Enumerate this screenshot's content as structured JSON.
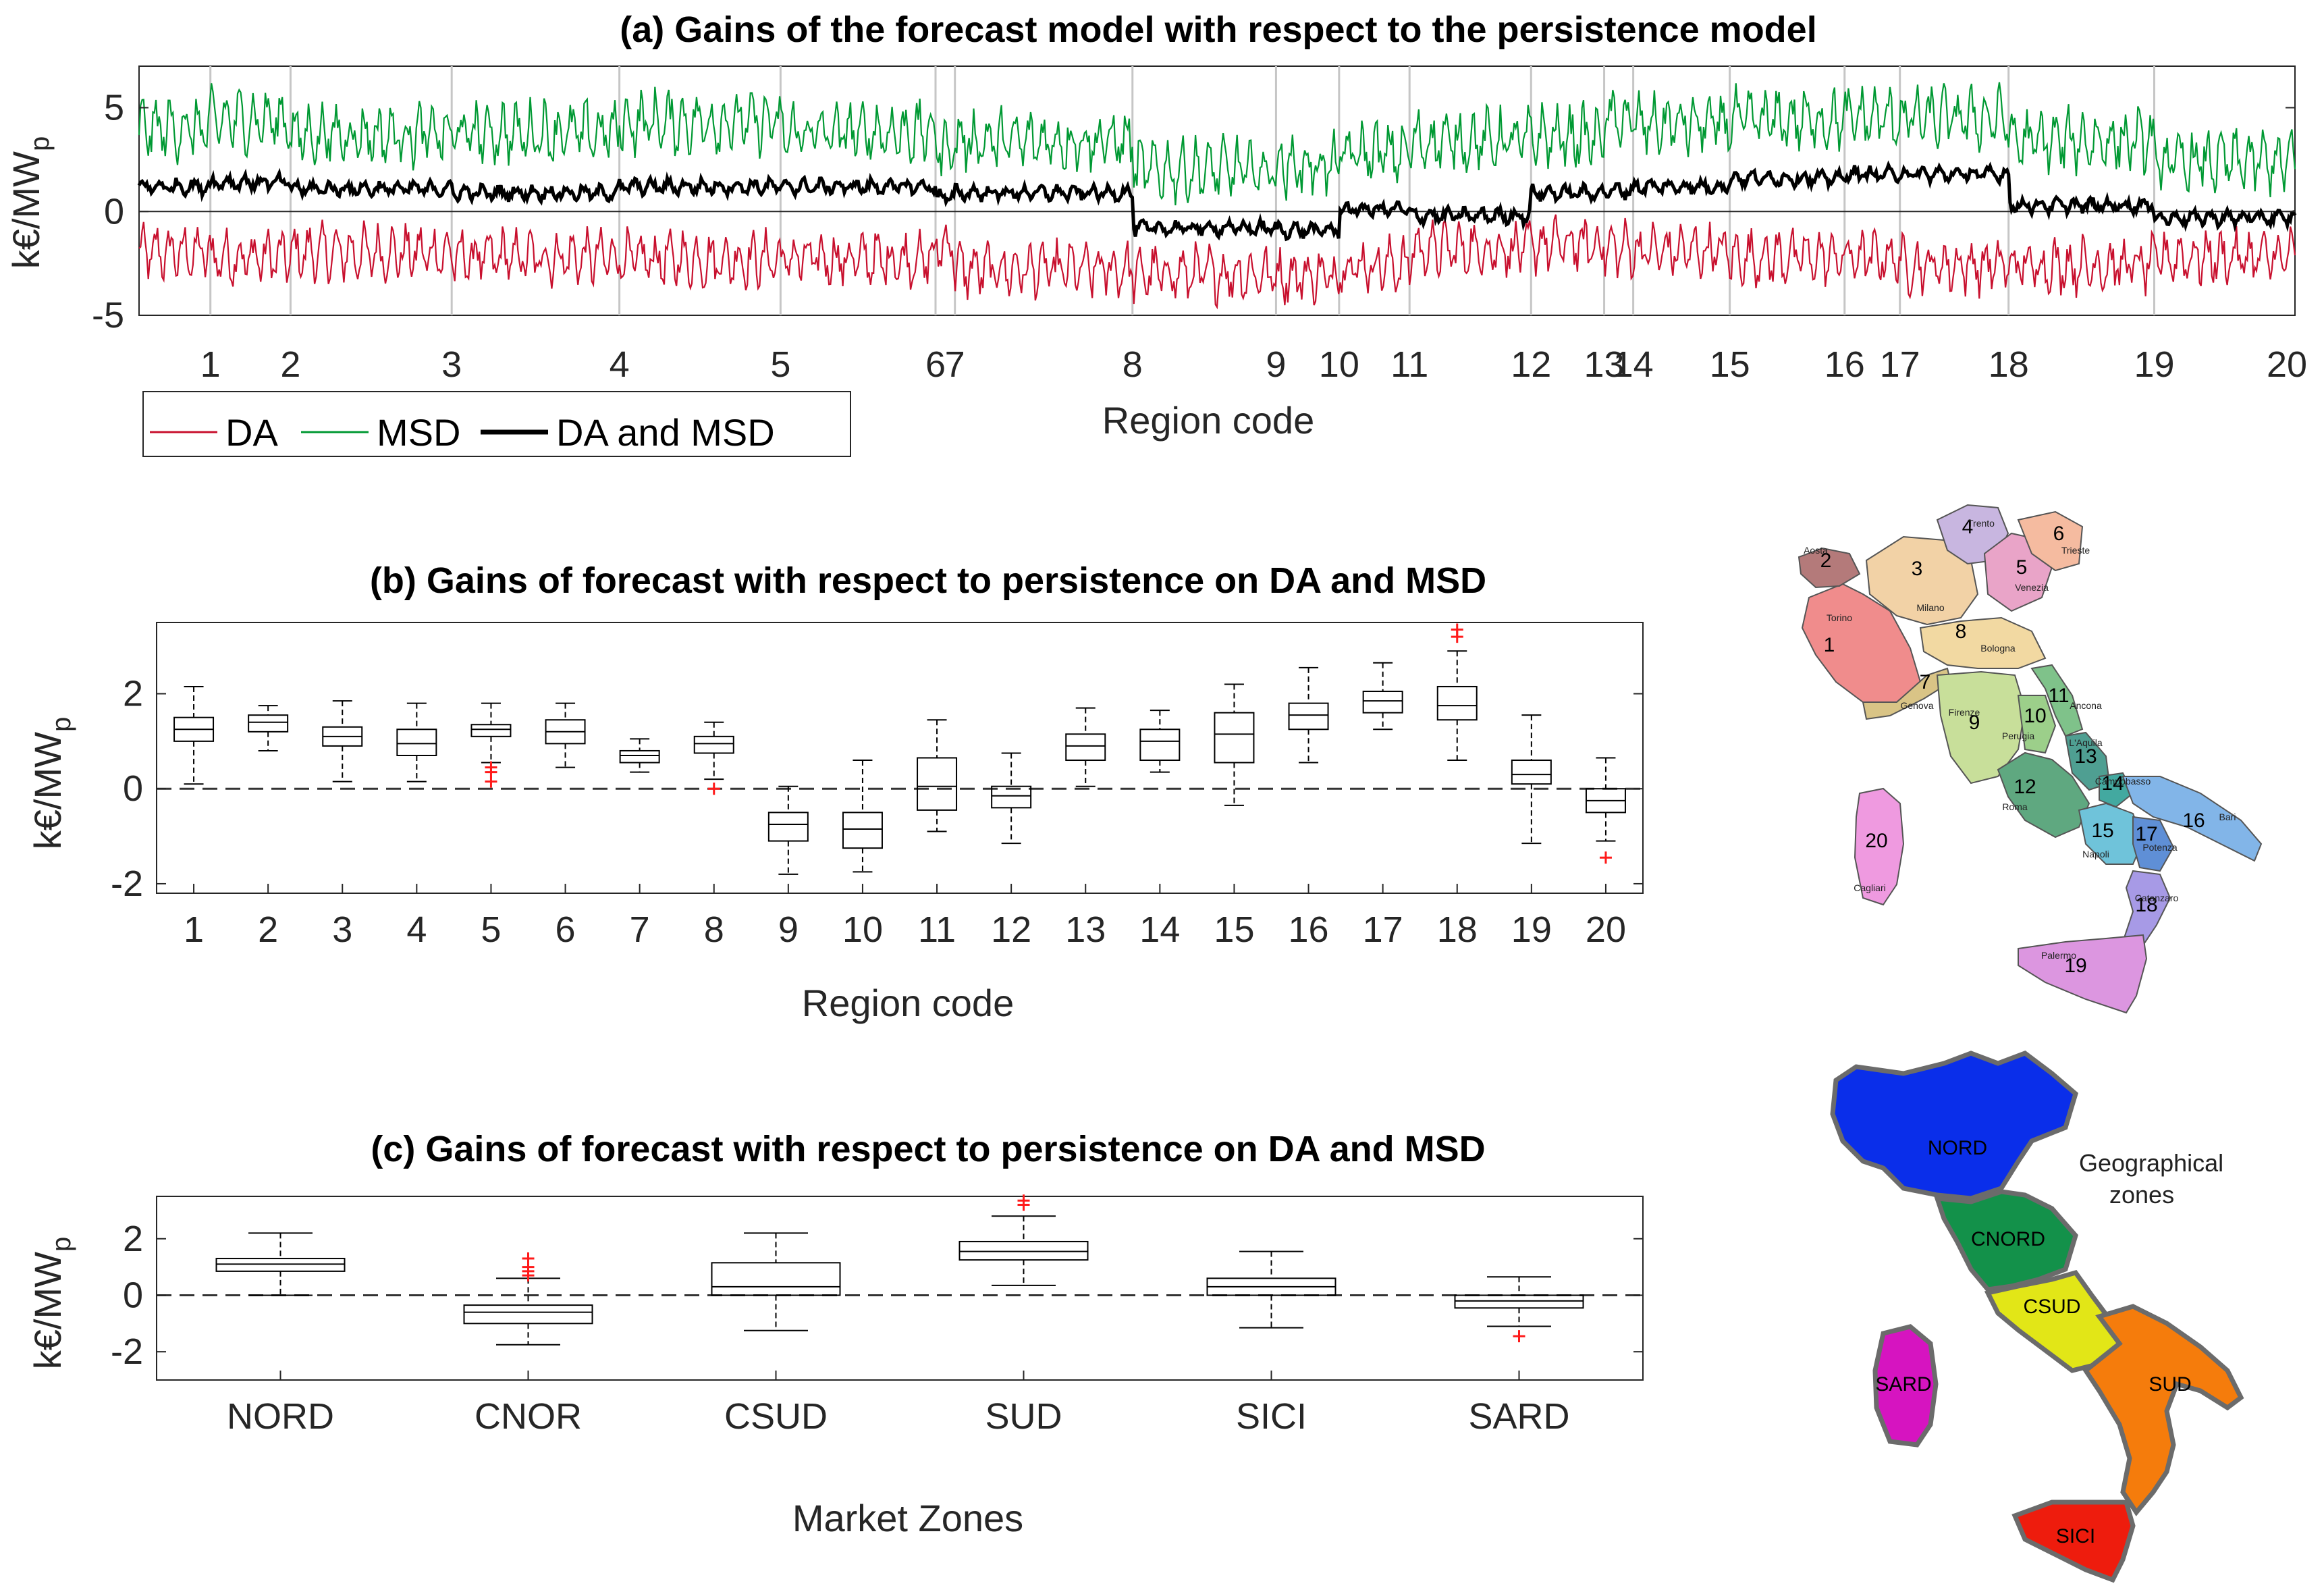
{
  "figure": {
    "geo_note_line1": "Geographical",
    "geo_note_line2": "zones"
  },
  "chart_data": [
    {
      "id": "a",
      "type": "line",
      "title": "(a) Gains of the forecast model with respect to the persistence model",
      "xlabel": "Region code",
      "ylabel": "k€/MW",
      "ylabel_sub": "p",
      "ylim": [
        -5,
        7
      ],
      "yticks": [
        "5",
        "0",
        "-5"
      ],
      "ytick_values": [
        5,
        0,
        -5
      ],
      "region_labels": [
        "1",
        "2",
        "3",
        "4",
        "5",
        "6",
        "7",
        "8",
        "9",
        "10",
        "11",
        "12",
        "13",
        "14",
        "15",
        "16",
        "17",
        "18",
        "19",
        "20"
      ],
      "region_boundaries": [
        0.0405,
        0.0455,
        0.0915,
        0.0952,
        0.0915,
        0.088,
        0.011,
        0.1008,
        0.0815,
        0.0358,
        0.04,
        0.069,
        0.0415,
        0.0165,
        0.0548,
        0.0652,
        0.0314,
        0.0617,
        0.0827,
        0.0799
      ],
      "region_mean_DA_MSD": [
        1.2,
        1.4,
        1.1,
        0.9,
        1.2,
        1.2,
        0.7,
        0.9,
        -0.8,
        -0.9,
        0.1,
        -0.2,
        0.9,
        1.0,
        1.2,
        1.6,
        1.8,
        1.8,
        0.3,
        -0.3
      ],
      "region_mean_DA": [
        -2.0,
        -2.2,
        -2.0,
        -2.2,
        -2.3,
        -2.3,
        -1.6,
        -2.8,
        -3.0,
        -3.1,
        -2.6,
        -1.8,
        -1.6,
        -1.8,
        -1.9,
        -2.2,
        -2.2,
        -2.6,
        -2.6,
        -2.2
      ],
      "region_mean_MSD": [
        4.0,
        4.4,
        3.7,
        3.8,
        4.3,
        3.8,
        3.1,
        3.4,
        2.0,
        2.2,
        2.8,
        3.4,
        3.6,
        4.4,
        4.2,
        4.4,
        4.5,
        4.5,
        3.4,
        2.4
      ],
      "series": [
        {
          "name": "DA",
          "color": "#c8102e"
        },
        {
          "name": "MSD",
          "color": "#009933"
        },
        {
          "name": "DA and MSD",
          "color": "#000000"
        }
      ]
    },
    {
      "id": "b",
      "type": "box",
      "title": "(b) Gains of forecast with respect to persistence on DA and MSD",
      "xlabel": "Region code",
      "ylabel": "k€/MW",
      "ylabel_sub": "p",
      "ylim": [
        -2.2,
        3.5
      ],
      "yticks": [
        "2",
        "0",
        "-2"
      ],
      "ytick_values": [
        2,
        0,
        -2
      ],
      "categories": [
        "1",
        "2",
        "3",
        "4",
        "5",
        "6",
        "7",
        "8",
        "9",
        "10",
        "11",
        "12",
        "13",
        "14",
        "15",
        "16",
        "17",
        "18",
        "19",
        "20"
      ],
      "boxes": [
        {
          "min": 0.1,
          "q1": 1.0,
          "med": 1.25,
          "q3": 1.5,
          "max": 2.15,
          "out": []
        },
        {
          "min": 0.8,
          "q1": 1.2,
          "med": 1.4,
          "q3": 1.55,
          "max": 1.75,
          "out": []
        },
        {
          "min": 0.15,
          "q1": 0.9,
          "med": 1.1,
          "q3": 1.3,
          "max": 1.85,
          "out": []
        },
        {
          "min": 0.15,
          "q1": 0.7,
          "med": 0.95,
          "q3": 1.25,
          "max": 1.8,
          "out": []
        },
        {
          "min": 0.55,
          "q1": 1.1,
          "med": 1.25,
          "q3": 1.35,
          "max": 1.8,
          "out": [
            0.45,
            0.35,
            0.15
          ]
        },
        {
          "min": 0.45,
          "q1": 0.95,
          "med": 1.2,
          "q3": 1.45,
          "max": 1.8,
          "out": []
        },
        {
          "min": 0.35,
          "q1": 0.55,
          "med": 0.7,
          "q3": 0.8,
          "max": 1.05,
          "out": []
        },
        {
          "min": 0.2,
          "q1": 0.75,
          "med": 0.95,
          "q3": 1.1,
          "max": 1.4,
          "out": [
            0.0
          ]
        },
        {
          "min": -1.8,
          "q1": -1.1,
          "med": -0.75,
          "q3": -0.5,
          "max": 0.05,
          "out": []
        },
        {
          "min": -1.75,
          "q1": -1.25,
          "med": -0.85,
          "q3": -0.5,
          "max": 0.6,
          "out": []
        },
        {
          "min": -0.9,
          "q1": -0.45,
          "med": 0.05,
          "q3": 0.65,
          "max": 1.45,
          "out": []
        },
        {
          "min": -1.15,
          "q1": -0.4,
          "med": -0.15,
          "q3": 0.05,
          "max": 0.75,
          "out": []
        },
        {
          "min": 0.05,
          "q1": 0.6,
          "med": 0.9,
          "q3": 1.15,
          "max": 1.7,
          "out": []
        },
        {
          "min": 0.35,
          "q1": 0.6,
          "med": 1.0,
          "q3": 1.25,
          "max": 1.65,
          "out": []
        },
        {
          "min": -0.35,
          "q1": 0.55,
          "med": 1.15,
          "q3": 1.6,
          "max": 2.2,
          "out": []
        },
        {
          "min": 0.55,
          "q1": 1.25,
          "med": 1.55,
          "q3": 1.8,
          "max": 2.55,
          "out": []
        },
        {
          "min": 1.25,
          "q1": 1.6,
          "med": 1.85,
          "q3": 2.05,
          "max": 2.65,
          "out": []
        },
        {
          "min": 0.6,
          "q1": 1.45,
          "med": 1.75,
          "q3": 2.15,
          "max": 2.9,
          "out": [
            3.2,
            3.35
          ]
        },
        {
          "min": -1.15,
          "q1": 0.1,
          "med": 0.3,
          "q3": 0.6,
          "max": 1.55,
          "out": []
        },
        {
          "min": -1.1,
          "q1": -0.5,
          "med": -0.25,
          "q3": 0.0,
          "max": 0.65,
          "out": [
            -1.45
          ]
        }
      ]
    },
    {
      "id": "c",
      "type": "box",
      "title": "(c) Gains of forecast with respect to persistence on DA and MSD",
      "xlabel": "Market Zones",
      "ylabel": "k€/MW",
      "ylabel_sub": "p",
      "ylim": [
        -3,
        3.5
      ],
      "yticks": [
        "2",
        "0",
        "-2"
      ],
      "ytick_values": [
        2,
        0,
        -2
      ],
      "categories": [
        "NORD",
        "CNOR",
        "CSUD",
        "SUD",
        "SICI",
        "SARD"
      ],
      "boxes": [
        {
          "min": 0.0,
          "q1": 0.85,
          "med": 1.1,
          "q3": 1.3,
          "max": 2.2,
          "out": []
        },
        {
          "min": -1.75,
          "q1": -1.0,
          "med": -0.6,
          "q3": -0.35,
          "max": 0.6,
          "out": [
            0.7,
            0.85,
            1.0,
            1.3
          ]
        },
        {
          "min": -1.25,
          "q1": 0.0,
          "med": 0.3,
          "q3": 1.15,
          "max": 2.2,
          "out": []
        },
        {
          "min": 0.35,
          "q1": 1.25,
          "med": 1.55,
          "q3": 1.9,
          "max": 2.8,
          "out": [
            3.2,
            3.35
          ]
        },
        {
          "min": -1.15,
          "q1": 0.0,
          "med": 0.3,
          "q3": 0.6,
          "max": 1.55,
          "out": []
        },
        {
          "min": -1.1,
          "q1": -0.45,
          "med": -0.2,
          "q3": 0.0,
          "max": 0.65,
          "out": [
            -1.45
          ]
        }
      ]
    }
  ],
  "maps": {
    "regions_map": {
      "labels": [
        "2",
        "3",
        "1",
        "4",
        "5",
        "6",
        "7",
        "8",
        "9",
        "10",
        "11",
        "12",
        "13",
        "14",
        "15",
        "16",
        "17",
        "18",
        "19",
        "20"
      ],
      "city_names": [
        "Aosta",
        "Milano",
        "Trento",
        "Venezia",
        "Trieste",
        "Bologna",
        "Genova",
        "Firenze",
        "Ancona",
        "Perugia",
        "Roma",
        "L'Aquila",
        "Campobasso",
        "Napoli",
        "Bari",
        "Potenza",
        "Catanzaro",
        "Palermo",
        "Cagliari",
        "Torino"
      ]
    },
    "zones_map": {
      "zones": [
        {
          "name": "NORD",
          "color": "#0a2eea"
        },
        {
          "name": "CNORD",
          "color": "#13914a"
        },
        {
          "name": "CSUD",
          "color": "#e2e617"
        },
        {
          "name": "SUD",
          "color": "#f57c0c"
        },
        {
          "name": "SARD",
          "color": "#d614c0"
        },
        {
          "name": "SICI",
          "color": "#ee1c0d"
        }
      ]
    }
  }
}
